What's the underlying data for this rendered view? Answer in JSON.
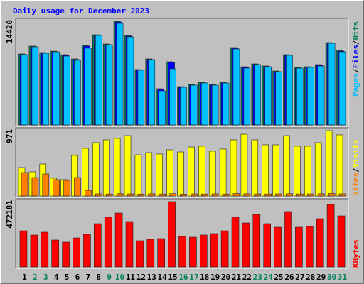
{
  "chart_data": [
    {
      "type": "bar",
      "title": "Daily usage for December 2023",
      "legend_separator": "/",
      "series": [
        {
          "name": "Pages",
          "color": "#00c0ff",
          "values": [
            9778,
            10864,
            9975,
            10173,
            9581,
            8989,
            10667,
            12445,
            11161,
            14123,
            12248,
            7605,
            9087,
            4741,
            7803,
            5235,
            5531,
            5827,
            5531,
            5827,
            10568,
            7901,
            8395,
            8099,
            7407,
            9679,
            7901,
            8000,
            8197,
            11358,
            10174
          ]
        },
        {
          "name": "Files",
          "color": "#0000ff",
          "values": [
            9780,
            10860,
            9975,
            10170,
            9680,
            9090,
            10960,
            12445,
            11160,
            14320,
            12345,
            7605,
            9090,
            4940,
            8692,
            5235,
            5530,
            5830,
            5530,
            5830,
            10665,
            8000,
            8395,
            8100,
            7405,
            9680,
            7900,
            8000,
            8295,
            11360,
            10270
          ]
        },
        {
          "name": "Hits",
          "color": "#00805c",
          "values": [
            9877,
            10963,
            10074,
            10272,
            9778,
            9186,
            11062,
            12544,
            11260,
            14420,
            12445,
            7704,
            9186,
            5037,
            8791,
            5334,
            5630,
            5926,
            5630,
            5926,
            10766,
            8099,
            8494,
            8198,
            7506,
            9778,
            8000,
            8099,
            8395,
            11457,
            10371
          ]
        }
      ],
      "ylim": [
        0,
        14420
      ],
      "yticks": [
        14420
      ]
    },
    {
      "type": "bar",
      "legend_separator": "/",
      "series": [
        {
          "name": "Sites",
          "color": "#ff8000",
          "values": [
            348,
            274,
            327,
            243,
            232,
            274,
            84,
            32,
            30,
            34,
            31,
            29,
            33,
            30,
            35,
            28,
            31,
            30,
            32,
            29,
            36,
            33,
            31,
            30,
            32,
            34,
            30,
            31,
            33,
            36,
            32
          ]
        },
        {
          "name": "Visits",
          "color": "#ffff00",
          "values": [
            422,
            359,
            475,
            264,
            243,
            602,
            707,
            792,
            834,
            855,
            897,
            612,
            644,
            623,
            686,
            654,
            728,
            739,
            665,
            697,
            834,
            918,
            834,
            760,
            760,
            897,
            739,
            739,
            792,
            971,
            908
          ]
        }
      ],
      "ylim": [
        0,
        971
      ],
      "yticks": [
        971
      ]
    },
    {
      "type": "bar",
      "categories": [
        "1",
        "2",
        "3",
        "4",
        "5",
        "6",
        "7",
        "8",
        "9",
        "10",
        "11",
        "12",
        "13",
        "14",
        "15",
        "16",
        "17",
        "18",
        "19",
        "20",
        "21",
        "22",
        "23",
        "24",
        "25",
        "26",
        "27",
        "28",
        "29",
        "30",
        "31"
      ],
      "category_colors": [
        "#000000",
        "#00805c",
        "#00805c",
        "#000000",
        "#000000",
        "#000000",
        "#000000",
        "#000000",
        "#00805c",
        "#00805c",
        "#000000",
        "#000000",
        "#000000",
        "#000000",
        "#000000",
        "#00805c",
        "#00805c",
        "#000000",
        "#000000",
        "#000000",
        "#000000",
        "#000000",
        "#00805c",
        "#00805c",
        "#000000",
        "#000000",
        "#000000",
        "#000000",
        "#000000",
        "#00805c",
        "#00805c"
      ],
      "series": [
        {
          "name": "KBytes",
          "color": "#ff0000",
          "values": [
            261732,
            230940,
            251468,
            195016,
            179620,
            210412,
            236072,
            313052,
            359240,
            390032,
            328448,
            189884,
            200148,
            205280,
            472181,
            220676,
            215544,
            230940,
            241204,
            261732,
            359240,
            318184,
            379768,
            313052,
            287392,
            400296,
            287392,
            292524,
            348976,
            451616,
            369504
          ]
        }
      ],
      "ylim": [
        0,
        472181
      ],
      "yticks": [
        472181
      ]
    }
  ]
}
